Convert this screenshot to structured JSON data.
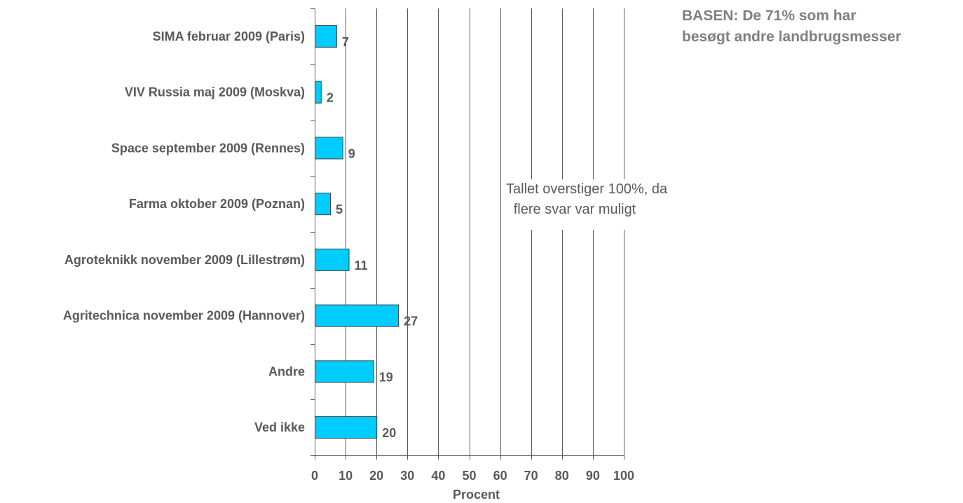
{
  "chart_data": {
    "type": "bar",
    "orientation": "horizontal",
    "categories": [
      "SIMA februar 2009 (Paris)",
      "VIV Russia maj 2009 (Moskva)",
      "Space september 2009 (Rennes)",
      "Farma oktober 2009 (Poznan)",
      "Agroteknikk november 2009 (Lillestrøm)",
      "Agritechnica november 2009 (Hannover)",
      "Andre",
      "Ved ikke"
    ],
    "values": [
      7,
      2,
      9,
      5,
      11,
      27,
      19,
      20
    ],
    "xlabel": "Procent",
    "xlim": [
      0,
      100
    ],
    "xticks": [
      0,
      10,
      20,
      30,
      40,
      50,
      60,
      70,
      80,
      90,
      100
    ],
    "grid": "vertical",
    "bar_color": "#00CCFF",
    "bar_edge_color": "#404040"
  },
  "base_note": {
    "line1": "BASEN: De 71% som har",
    "line2": "besøgt andre landbrugsmesser"
  },
  "annotation": {
    "line1": "Tallet overstiger 100%, da",
    "line2": "flere svar var muligt"
  }
}
